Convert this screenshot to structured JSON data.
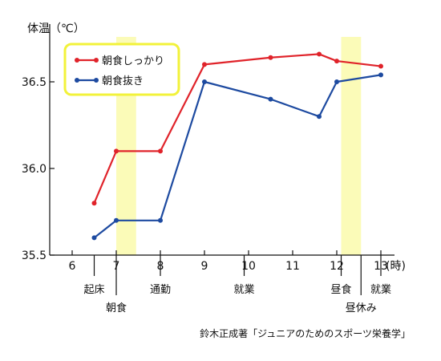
{
  "chart_data": {
    "type": "line",
    "ylabel": "体温（℃）",
    "x_unit_label": "(時)",
    "ylim": [
      35.5,
      36.75
    ],
    "xlim": [
      5.5,
      13.5
    ],
    "y_ticks": [
      35.5,
      36.0,
      36.5
    ],
    "y_tick_labels": [
      "35.5",
      "36.0",
      "36.5"
    ],
    "x_ticks": [
      6,
      7,
      8,
      9,
      10,
      11,
      12,
      13
    ],
    "x_tick_labels": [
      "6",
      "7",
      "8",
      "9",
      "10",
      "11",
      "12",
      "13"
    ],
    "series": [
      {
        "name": "朝食しっかり",
        "color": "#e0232a",
        "x": [
          6.5,
          7,
          8,
          9,
          10.5,
          11.6,
          12,
          13
        ],
        "y": [
          35.8,
          36.1,
          36.1,
          36.6,
          36.64,
          36.66,
          36.62,
          36.59
        ]
      },
      {
        "name": "朝食抜き",
        "color": "#1d4aa0",
        "x": [
          6.5,
          7,
          8,
          9,
          10.5,
          11.6,
          12,
          13
        ],
        "y": [
          35.6,
          35.7,
          35.7,
          36.5,
          36.4,
          36.3,
          36.5,
          36.54
        ]
      }
    ],
    "highlights": [
      {
        "x_start": 7.0,
        "x_end": 7.45,
        "color": "#fbfbb8"
      },
      {
        "x_start": 12.1,
        "x_end": 12.55,
        "color": "#fbfbb8"
      }
    ],
    "legend": {
      "position": "top-left",
      "border_color": "#f2f23a"
    },
    "annotations": [
      {
        "text": "起床",
        "x": 6.5,
        "row": 1
      },
      {
        "text": "朝食",
        "x": 7.0,
        "row": 2
      },
      {
        "text": "通勤",
        "x": 8.0,
        "row": 1
      },
      {
        "text": "就業",
        "x": 9.9,
        "row": 1
      },
      {
        "text": "昼食",
        "x": 12.1,
        "row": 1
      },
      {
        "text": "昼休み",
        "x": 12.55,
        "row": 2
      },
      {
        "text": "就業",
        "x": 13.0,
        "row": 1
      }
    ],
    "source": "鈴木正成著「ジュニアのためのスポーツ栄養学」"
  }
}
